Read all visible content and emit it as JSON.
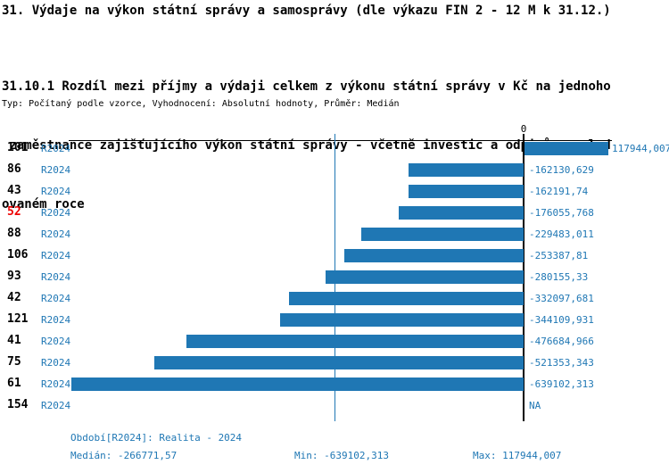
{
  "page": {
    "title": "31. Výdaje na výkon státní správy a samosprávy (dle výkazu FIN 2 - 12 M k 31.12.)",
    "heading_lines": [
      "31.10.1 Rozdíl mezi příjmy a výdaji celkem z výkonu státní správy v Kč na jednoho",
      " zaměstnance zajišťujícího výkon státní správy - včetně investic a odpisů ve sled",
      "ovaném roce"
    ],
    "subtitle": "Typ: Počítaný podle vzorce, Vyhodnocení: Absolutní hodnoty, Průměr: Medián"
  },
  "chart_data": {
    "type": "bar",
    "orientation": "horizontal",
    "axis_zero_label": "0",
    "period_label": "R2024",
    "categories": [
      "101",
      "86",
      "43",
      "52",
      "88",
      "106",
      "93",
      "42",
      "121",
      "41",
      "75",
      "61",
      "154"
    ],
    "highlighted_category": "52",
    "values": [
      117944.007,
      -162130.629,
      -162191.74,
      -176055.768,
      -229483.011,
      -253387.81,
      -280155.33,
      -332097.681,
      -344109.931,
      -476684.966,
      -521353.343,
      -639102.313,
      null
    ],
    "value_labels": [
      "117944,007",
      "-162130,629",
      "-162191,74",
      "-176055,768",
      "-229483,011",
      "-253387,81",
      "-280155,33",
      "-332097,681",
      "-344109,931",
      "-476684,966",
      "-521353,343",
      "-639102,313",
      "NA"
    ],
    "median_value": -266771.57,
    "xlim": [
      -643000,
      125000
    ],
    "xlabel": "",
    "ylabel": "",
    "grid": false,
    "legend": false,
    "colors": {
      "bar": "#1f77b4",
      "blue_text": "#1f77b4",
      "median_line": "#1f77b4",
      "highlight_red": "#ee0000",
      "axis": "#000000"
    }
  },
  "footer": {
    "period_line": "Období[R2024]: Realita - 2024",
    "median": "Medián: -266771,57",
    "min": "Min: -639102,313",
    "max": "Max: 117944,007"
  }
}
